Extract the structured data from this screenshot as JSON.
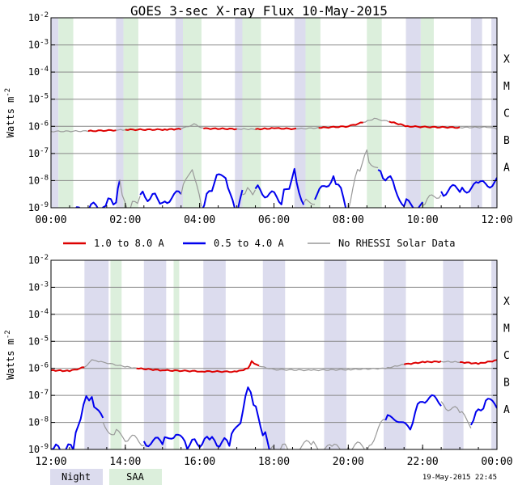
{
  "title": "GOES 3-sec X-ray Flux   10-May-2015",
  "footer_timestamp": "19-May-2015 22:45",
  "legend": {
    "long": "1.0 to 8.0 A",
    "short": "0.5 to 4.0 A",
    "norhessi": "No RHESSI Solar Data",
    "night": "Night",
    "saa": "SAA"
  },
  "colors": {
    "long": "#dd0000",
    "short": "#0000ee",
    "norhessi": "#999999",
    "night": "#dcdcee",
    "saa": "#dcefdc",
    "gridline": "#888888"
  },
  "chart_data": [
    {
      "type": "line",
      "panel": "first half of day",
      "ylabel": "Watts m^-2",
      "yscale": "log",
      "ylim": [
        1e-09,
        0.01
      ],
      "y_ticks": [
        "10^-9",
        "10^-8",
        "10^-7",
        "10^-6",
        "10^-5",
        "10^-4",
        "10^-3",
        "10^-2"
      ],
      "class_labels": [
        "A",
        "B",
        "C",
        "M",
        "X"
      ],
      "xlim_hours": [
        0,
        12
      ],
      "x_ticks": [
        "00:00",
        "02:00",
        "04:00",
        "06:00",
        "08:00",
        "10:00",
        "12:00"
      ],
      "night_intervals_hours": [
        [
          0.0,
          0.2
        ],
        [
          1.75,
          1.95
        ],
        [
          3.35,
          3.55
        ],
        [
          4.95,
          5.15
        ],
        [
          6.55,
          6.85
        ],
        [
          9.55,
          9.95
        ],
        [
          11.3,
          11.6
        ],
        [
          11.85,
          12.0
        ]
      ],
      "saa_intervals_hours": [
        [
          0.2,
          0.6
        ],
        [
          1.95,
          2.35
        ],
        [
          3.55,
          4.05
        ],
        [
          5.15,
          5.65
        ],
        [
          6.85,
          7.25
        ],
        [
          8.5,
          8.9
        ],
        [
          9.95,
          10.3
        ]
      ],
      "series": [
        {
          "name": "1.0 to 8.0 A",
          "color_key": "long",
          "gap_color_key": "norhessi",
          "points": [
            [
              0,
              6.5e-07
            ],
            [
              1,
              6.7e-07
            ],
            [
              1.75,
              7.2e-07
            ],
            [
              2,
              7.5e-07
            ],
            [
              3,
              7.6e-07
            ],
            [
              3.5,
              8e-07
            ],
            [
              3.85,
              1.2e-06
            ],
            [
              4.1,
              8.3e-07
            ],
            [
              5,
              8e-07
            ],
            [
              5.5,
              7.8e-07
            ],
            [
              6,
              8.5e-07
            ],
            [
              6.6,
              8e-07
            ],
            [
              7.2,
              8.8e-07
            ],
            [
              8,
              1e-06
            ],
            [
              8.4,
              1.4e-06
            ],
            [
              8.7,
              1.9e-06
            ],
            [
              9.1,
              1.5e-06
            ],
            [
              9.6,
              1e-06
            ],
            [
              10,
              9.5e-07
            ],
            [
              11,
              9e-07
            ],
            [
              11.8,
              9.3e-07
            ],
            [
              12,
              8e-07
            ]
          ],
          "gaps_hours": [
            [
              0,
              0.6
            ],
            [
              1.75,
              2.35
            ],
            [
              3.35,
              4.05
            ],
            [
              4.95,
              5.65
            ],
            [
              6.55,
              7.25
            ],
            [
              8.3,
              9.0
            ],
            [
              9.95,
              10.3
            ],
            [
              11.3,
              12.0
            ]
          ]
        },
        {
          "name": "0.5 to 4.0 A",
          "color_key": "short",
          "gap_color_key": "norhessi",
          "points": [
            [
              0,
              5e-10
            ],
            [
              0.5,
              6e-10
            ],
            [
              1.4,
              1.3e-09
            ],
            [
              1.75,
              2e-09
            ],
            [
              1.85,
              1.1e-08
            ],
            [
              2.05,
              6e-10
            ],
            [
              2.4,
              3e-09
            ],
            [
              3.0,
              2e-09
            ],
            [
              3.5,
              3e-09
            ],
            [
              3.8,
              3.5e-08
            ],
            [
              4.05,
              8e-10
            ],
            [
              4.4,
              1e-08
            ],
            [
              4.7,
              1.5e-08
            ],
            [
              4.95,
              6e-10
            ],
            [
              5.15,
              3e-09
            ],
            [
              5.5,
              5e-09
            ],
            [
              6.2,
              2e-09
            ],
            [
              6.55,
              1.8e-08
            ],
            [
              6.8,
              1.5e-09
            ],
            [
              7.1,
              2e-09
            ],
            [
              7.6,
              1.6e-08
            ],
            [
              8.0,
              8e-10
            ],
            [
              8.25,
              2e-08
            ],
            [
              8.5,
              9e-08
            ],
            [
              8.8,
              2.5e-08
            ],
            [
              9.2,
              8e-09
            ],
            [
              9.5,
              1.4e-09
            ],
            [
              10.0,
              1.2e-09
            ],
            [
              10.5,
              4e-09
            ],
            [
              11.0,
              5e-09
            ],
            [
              11.5,
              6e-09
            ],
            [
              12.0,
              1e-08
            ]
          ],
          "gaps_hours": [
            [
              0,
              0.6
            ],
            [
              1.95,
              2.35
            ],
            [
              3.55,
              4.05
            ],
            [
              5.15,
              5.65
            ],
            [
              6.85,
              7.25
            ],
            [
              7.9,
              8.95
            ],
            [
              9.95,
              10.3
            ],
            [
              11.85,
              12.0
            ]
          ]
        }
      ]
    },
    {
      "type": "line",
      "panel": "second half of day",
      "ylabel": "Watts m^-2",
      "yscale": "log",
      "ylim": [
        1e-09,
        0.01
      ],
      "y_ticks": [
        "10^-9",
        "10^-8",
        "10^-7",
        "10^-6",
        "10^-5",
        "10^-4",
        "10^-3",
        "10^-2"
      ],
      "class_labels": [
        "A",
        "B",
        "C",
        "M",
        "X"
      ],
      "xlim_hours": [
        12,
        24
      ],
      "x_ticks": [
        "12:00",
        "14:00",
        "16:00",
        "18:00",
        "20:00",
        "22:00",
        "00:00"
      ],
      "night_intervals_hours": [
        [
          12.9,
          13.55
        ],
        [
          14.5,
          15.1
        ],
        [
          16.1,
          16.7
        ],
        [
          17.7,
          18.3
        ],
        [
          19.35,
          19.95
        ],
        [
          20.95,
          21.55
        ],
        [
          22.55,
          23.1
        ],
        [
          23.85,
          24.0
        ]
      ],
      "saa_intervals_hours": [
        [
          13.6,
          13.9
        ],
        [
          15.3,
          15.45
        ]
      ],
      "series": [
        {
          "name": "1.0 to 8.0 A",
          "color_key": "long",
          "gap_color_key": "norhessi",
          "points": [
            [
              12,
              8.5e-07
            ],
            [
              12.5,
              8e-07
            ],
            [
              12.9,
              1.1e-06
            ],
            [
              13.1,
              2e-06
            ],
            [
              13.4,
              1.7e-06
            ],
            [
              13.8,
              1.3e-06
            ],
            [
              14.3,
              1e-06
            ],
            [
              15,
              8.5e-07
            ],
            [
              16,
              7.8e-07
            ],
            [
              17,
              7.5e-07
            ],
            [
              17.3,
              1e-06
            ],
            [
              17.4,
              1.8e-06
            ],
            [
              17.6,
              1.2e-06
            ],
            [
              18,
              9e-07
            ],
            [
              19,
              8.5e-07
            ],
            [
              20,
              9e-07
            ],
            [
              21,
              1e-06
            ],
            [
              21.5,
              1.4e-06
            ],
            [
              22,
              1.7e-06
            ],
            [
              22.5,
              1.8e-06
            ],
            [
              23,
              1.7e-06
            ],
            [
              23.5,
              1.5e-06
            ],
            [
              24,
              2e-06
            ]
          ],
          "gaps_hours": [
            [
              12.9,
              14.1
            ],
            [
              17.7,
              21.6
            ],
            [
              22.55,
              23.1
            ],
            [
              23.85,
              24.0
            ]
          ]
        },
        {
          "name": "0.5 to 4.0 A",
          "color_key": "short",
          "gap_color_key": "norhessi",
          "points": [
            [
              12,
              1e-09
            ],
            [
              12.6,
              1.1e-09
            ],
            [
              12.8,
              2e-08
            ],
            [
              12.95,
              1.3e-07
            ],
            [
              13.1,
              6e-08
            ],
            [
              13.4,
              1e-08
            ],
            [
              13.7,
              4e-09
            ],
            [
              14.0,
              2.5e-09
            ],
            [
              14.5,
              2e-09
            ],
            [
              15,
              1.8e-09
            ],
            [
              15.3,
              4e-09
            ],
            [
              15.6,
              1.5e-09
            ],
            [
              16.2,
              2e-09
            ],
            [
              16.8,
              1.7e-09
            ],
            [
              17.1,
              1.2e-08
            ],
            [
              17.3,
              1.5e-07
            ],
            [
              17.45,
              5e-08
            ],
            [
              17.7,
              5e-09
            ],
            [
              17.9,
              1e-09
            ],
            [
              18.5,
              1.2e-09
            ],
            [
              19.0,
              1.5e-09
            ],
            [
              19.5,
              1e-09
            ],
            [
              20,
              1.2e-09
            ],
            [
              20.5,
              1.3e-09
            ],
            [
              21.0,
              1.2e-08
            ],
            [
              21.3,
              1.5e-08
            ],
            [
              21.6,
              5e-09
            ],
            [
              22.0,
              8e-08
            ],
            [
              22.5,
              6e-08
            ],
            [
              23.0,
              2e-08
            ],
            [
              23.3,
              8e-09
            ],
            [
              23.7,
              7e-08
            ],
            [
              24,
              3e-08
            ]
          ],
          "gaps_hours": [
            [
              13.55,
              14.7
            ],
            [
              17.8,
              20.9
            ],
            [
              22.55,
              23.2
            ]
          ]
        }
      ]
    }
  ]
}
